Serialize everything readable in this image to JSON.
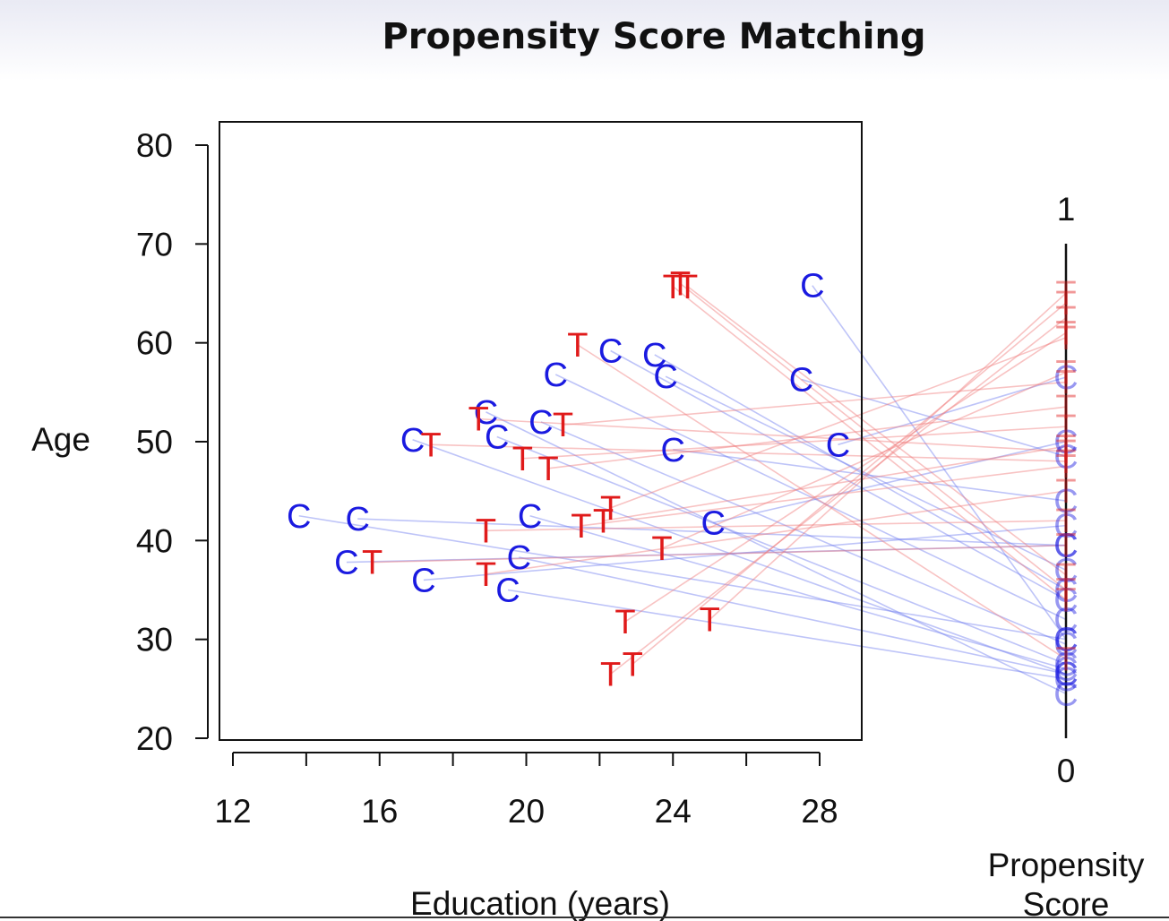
{
  "slide_title": "Propensity Score Matching",
  "chart_data": {
    "type": "scatter",
    "title": "Propensity Score Matching",
    "xlabel": "Education (years)",
    "ylabel": "Age",
    "xlim": [
      11.5,
      29
    ],
    "ylim": [
      19,
      81
    ],
    "x_ticks": [
      12,
      14,
      16,
      18,
      20,
      22,
      24,
      26,
      28
    ],
    "x_tick_labels": [
      "12",
      "16",
      "20",
      "24",
      "28"
    ],
    "y_ticks": [
      20,
      30,
      40,
      50,
      60,
      70,
      80
    ],
    "y_tick_labels": [
      "20",
      "30",
      "40",
      "50",
      "60",
      "70",
      "80"
    ],
    "propensity_axis": {
      "label": "Propensity Score",
      "min_label": "0",
      "max_label": "1",
      "range": [
        0,
        1
      ]
    },
    "series": [
      {
        "name": "C",
        "marker": "C",
        "color": "#1a1ae0",
        "points": [
          {
            "x": 13.8,
            "y": 42.5,
            "p": 0.2
          },
          {
            "x": 15.4,
            "y": 42.2,
            "p": 0.39
          },
          {
            "x": 15.1,
            "y": 37.8,
            "p": 0.39
          },
          {
            "x": 17.2,
            "y": 36.0,
            "p": 0.43
          },
          {
            "x": 16.9,
            "y": 50.2,
            "p": 0.13
          },
          {
            "x": 18.9,
            "y": 53.0,
            "p": 0.09
          },
          {
            "x": 19.2,
            "y": 50.5,
            "p": 0.15
          },
          {
            "x": 19.5,
            "y": 35.0,
            "p": 0.12
          },
          {
            "x": 19.8,
            "y": 38.3,
            "p": 0.13
          },
          {
            "x": 20.1,
            "y": 42.5,
            "p": 0.14
          },
          {
            "x": 20.4,
            "y": 52.0,
            "p": 0.19
          },
          {
            "x": 20.8,
            "y": 56.8,
            "p": 0.24
          },
          {
            "x": 22.3,
            "y": 59.2,
            "p": 0.28
          },
          {
            "x": 23.5,
            "y": 58.8,
            "p": 0.3
          },
          {
            "x": 23.8,
            "y": 56.6,
            "p": 0.34
          },
          {
            "x": 24.0,
            "y": 49.2,
            "p": 0.48
          },
          {
            "x": 25.1,
            "y": 41.8,
            "p": 0.6
          },
          {
            "x": 27.5,
            "y": 56.3,
            "p": 0.57
          },
          {
            "x": 27.8,
            "y": 65.8,
            "p": 0.2
          },
          {
            "x": 28.5,
            "y": 49.7,
            "p": 0.73
          }
        ]
      },
      {
        "name": "T",
        "marker": "T",
        "color": "#e01a1a",
        "points": [
          {
            "x": 15.8,
            "y": 37.8,
            "p": 0.39
          },
          {
            "x": 17.4,
            "y": 49.7,
            "p": 0.56
          },
          {
            "x": 18.7,
            "y": 52.3,
            "p": 0.58
          },
          {
            "x": 18.9,
            "y": 41.0,
            "p": 0.44
          },
          {
            "x": 18.9,
            "y": 36.6,
            "p": 0.5
          },
          {
            "x": 19.9,
            "y": 48.3,
            "p": 0.63
          },
          {
            "x": 20.6,
            "y": 47.3,
            "p": 0.67
          },
          {
            "x": 21.0,
            "y": 51.7,
            "p": 0.72
          },
          {
            "x": 21.4,
            "y": 59.8,
            "p": 0.16
          },
          {
            "x": 21.5,
            "y": 41.5,
            "p": 0.55
          },
          {
            "x": 22.1,
            "y": 42.0,
            "p": 0.59
          },
          {
            "x": 22.3,
            "y": 43.3,
            "p": 0.81
          },
          {
            "x": 22.3,
            "y": 26.5,
            "p": 0.85
          },
          {
            "x": 22.7,
            "y": 31.8,
            "p": 0.82
          },
          {
            "x": 22.9,
            "y": 27.5,
            "p": 0.88
          },
          {
            "x": 23.7,
            "y": 39.2,
            "p": 0.74
          },
          {
            "x": 24.0,
            "y": 65.7,
            "p": 0.28
          },
          {
            "x": 24.2,
            "y": 66.0,
            "p": 0.3
          },
          {
            "x": 24.4,
            "y": 65.7,
            "p": 0.33
          },
          {
            "x": 25.0,
            "y": 32.0,
            "p": 0.9
          }
        ]
      }
    ]
  }
}
